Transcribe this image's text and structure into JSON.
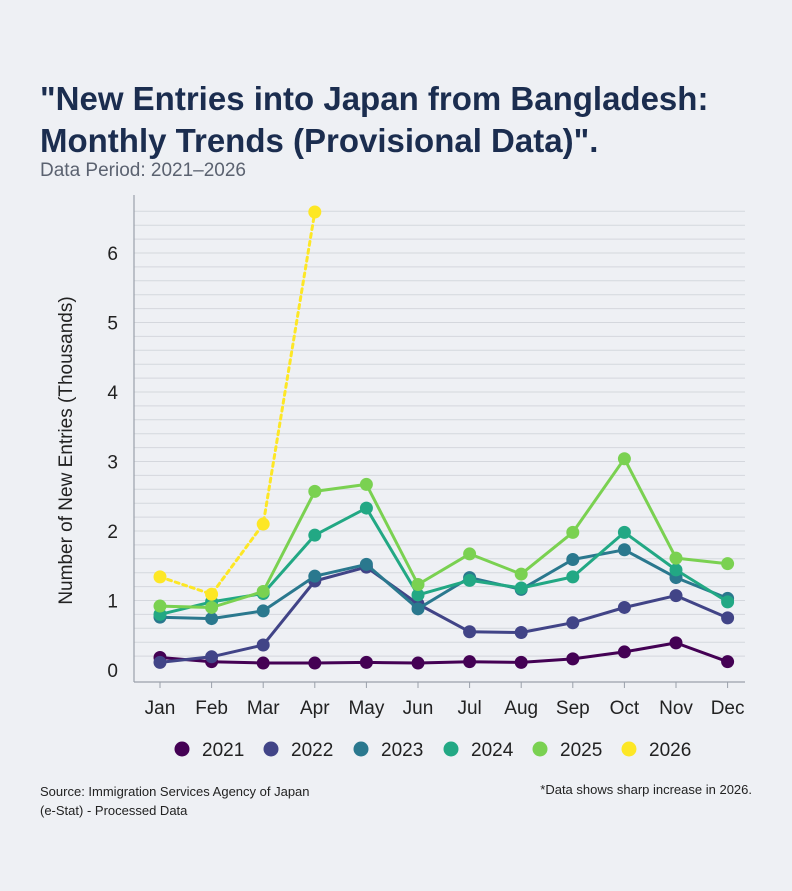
{
  "header": {
    "title_line1": "\"New Entries into Japan from Bangladesh:",
    "title_line2": "Monthly Trends (Provisional Data)\".",
    "subtitle": "Data Period: 2021–2026"
  },
  "footer": {
    "source_line1": "Source: Immigration Services Agency of Japan",
    "source_line2": "(e-Stat) - Processed Data",
    "note": "*Data shows sharp increase in 2026."
  },
  "chart_data": {
    "type": "line",
    "title": "\"New Entries into Japan from Bangladesh: Monthly Trends (Provisional Data)\".",
    "subtitle": "Data Period: 2021–2026",
    "xlabel": "",
    "ylabel": "Number of New Entries (Thousands)",
    "categories": [
      "Jan",
      "Feb",
      "Mar",
      "Apr",
      "May",
      "Jun",
      "Jul",
      "Aug",
      "Sep",
      "Oct",
      "Nov",
      "Dec"
    ],
    "ylim": [
      0,
      6.8
    ],
    "yticks": [
      0,
      1,
      2,
      3,
      4,
      5,
      6
    ],
    "grid": true,
    "legend_position": "bottom",
    "series": [
      {
        "name": "2021",
        "color": "#440154",
        "dashed": false,
        "values": [
          0.18,
          0.12,
          0.1,
          0.1,
          0.11,
          0.1,
          0.12,
          0.11,
          0.16,
          0.26,
          0.39,
          0.12
        ]
      },
      {
        "name": "2022",
        "color": "#414487",
        "dashed": false,
        "values": [
          0.11,
          0.19,
          0.36,
          1.28,
          1.48,
          0.95,
          0.55,
          0.54,
          0.68,
          0.9,
          1.07,
          0.75
        ]
      },
      {
        "name": "2023",
        "color": "#2a788e",
        "dashed": false,
        "values": [
          0.76,
          0.74,
          0.85,
          1.35,
          1.52,
          0.88,
          1.33,
          1.16,
          1.59,
          1.73,
          1.33,
          1.03
        ]
      },
      {
        "name": "2024",
        "color": "#22a884",
        "dashed": false,
        "values": [
          0.8,
          0.98,
          1.1,
          1.94,
          2.33,
          1.08,
          1.29,
          1.18,
          1.34,
          1.98,
          1.44,
          0.98
        ]
      },
      {
        "name": "2025",
        "color": "#7ad151",
        "dashed": false,
        "values": [
          0.92,
          0.9,
          1.13,
          2.57,
          2.67,
          1.23,
          1.67,
          1.38,
          1.98,
          3.04,
          1.61,
          1.53
        ]
      },
      {
        "name": "2026",
        "color": "#fde725",
        "dashed": true,
        "values": [
          1.34,
          1.09,
          2.1,
          6.59,
          null,
          null,
          null,
          null,
          null,
          null,
          null,
          null
        ]
      }
    ]
  }
}
